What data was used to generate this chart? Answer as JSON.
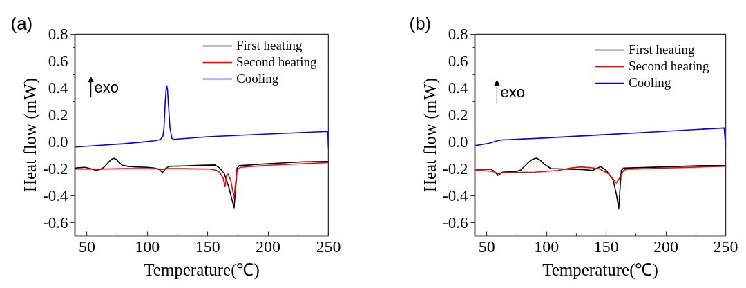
{
  "chart_data": [
    {
      "type": "line",
      "title": "(a)",
      "xlabel": "Temperature(℃)",
      "ylabel": "Heat flow (mW)",
      "annotations": [
        "exo"
      ],
      "legend": "top right",
      "xlim": [
        40,
        250
      ],
      "ylim": [
        -0.7,
        0.8
      ],
      "xticks": [
        50,
        {
          "value": 75,
          "label": null
        },
        100,
        {
          "value": 125,
          "label": null
        },
        150,
        {
          "value": 175,
          "label": null
        },
        200,
        {
          "value": 225,
          "label": null
        },
        250
      ],
      "yticks": [
        -0.6,
        {
          "value": -0.5,
          "label": null
        },
        -0.4,
        {
          "value": -0.3,
          "label": null
        },
        -0.2,
        {
          "value": -0.1,
          "label": null
        },
        {
          "value": 0,
          "label": "0.0"
        },
        {
          "value": 0.1,
          "label": null
        },
        0.2,
        {
          "value": 0.3,
          "label": null
        },
        0.4,
        {
          "value": 0.5,
          "label": null
        },
        0.6,
        {
          "value": 0.7,
          "label": null
        },
        0.8
      ],
      "series": [
        {
          "name": "First heating",
          "color": "#000000",
          "x": [
            40,
            45,
            48.6,
            53,
            57.3,
            61,
            64,
            68,
            70.5,
            72.4,
            74.5,
            76,
            79.3,
            84,
            90,
            100,
            106,
            110,
            112.5,
            114.8,
            117.7,
            130,
            144.5,
            156,
            159.9,
            163.7,
            167.5,
            171.8,
            172.9,
            174.3,
            176.2,
            200,
            230,
            250
          ],
          "values": [
            -0.195,
            -0.192,
            -0.19,
            -0.2,
            -0.212,
            -0.205,
            -0.19,
            -0.15,
            -0.13,
            -0.123,
            -0.132,
            -0.15,
            -0.175,
            -0.183,
            -0.187,
            -0.19,
            -0.195,
            -0.207,
            -0.229,
            -0.203,
            -0.183,
            -0.18,
            -0.175,
            -0.173,
            -0.195,
            -0.237,
            -0.339,
            -0.491,
            -0.373,
            -0.195,
            -0.178,
            -0.163,
            -0.149,
            -0.147
          ]
        },
        {
          "name": "Second heating",
          "color": "#ff0000",
          "x": [
            40,
            60,
            80,
            100,
            108,
            112,
            115,
            130,
            152,
            157,
            160,
            162.8,
            164.3,
            165.6,
            166.8,
            169.1,
            171.8,
            172.9,
            174.3,
            177.1,
            200,
            230,
            250
          ],
          "values": [
            -0.203,
            -0.203,
            -0.2,
            -0.2,
            -0.2,
            -0.207,
            -0.2,
            -0.2,
            -0.203,
            -0.212,
            -0.229,
            -0.271,
            -0.335,
            -0.254,
            -0.24,
            -0.288,
            -0.418,
            -0.322,
            -0.212,
            -0.19,
            -0.175,
            -0.163,
            -0.155
          ]
        },
        {
          "name": "Cooling",
          "color": "#0000ff",
          "x": [
            40,
            60,
            80,
            100,
            106,
            110.8,
            112.9,
            113.8,
            114.8,
            115.5,
            116.1,
            116.7,
            117.3,
            118.7,
            120.3,
            121.7,
            150,
            200,
            249.5,
            250
          ],
          "values": [
            -0.039,
            -0.027,
            -0.015,
            0.002,
            0.008,
            0.017,
            0.042,
            0.105,
            0.298,
            0.385,
            0.416,
            0.385,
            0.298,
            0.105,
            0.026,
            0.018,
            0.037,
            0.058,
            0.077,
            -0.05
          ]
        }
      ]
    },
    {
      "type": "line",
      "title": "(b)",
      "xlabel": "Temperature(℃)",
      "ylabel": "Heat flow (mW)",
      "annotations": [
        "exo"
      ],
      "legend": "top right",
      "xlim": [
        40,
        250
      ],
      "ylim": [
        -0.7,
        0.8
      ],
      "xticks": [
        50,
        {
          "value": 75,
          "label": null
        },
        100,
        {
          "value": 125,
          "label": null
        },
        150,
        {
          "value": 175,
          "label": null
        },
        200,
        {
          "value": 225,
          "label": null
        },
        250
      ],
      "yticks": [
        -0.6,
        {
          "value": -0.5,
          "label": null
        },
        -0.4,
        {
          "value": -0.3,
          "label": null
        },
        -0.2,
        {
          "value": -0.1,
          "label": null
        },
        {
          "value": 0,
          "label": "0.0"
        },
        {
          "value": 0.1,
          "label": null
        },
        0.2,
        {
          "value": 0.3,
          "label": null
        },
        0.4,
        {
          "value": 0.5,
          "label": null
        },
        0.6,
        {
          "value": 0.7,
          "label": null
        },
        0.8
      ],
      "series": [
        {
          "name": "First heating",
          "color": "#000000",
          "x": [
            40,
            53.5,
            56.4,
            59.3,
            63.2,
            70,
            74.7,
            78.6,
            84.4,
            88,
            91.3,
            94.5,
            97.9,
            103.7,
            119.1,
            130,
            138.4,
            145.3,
            150,
            155.8,
            158.7,
            160.5,
            162.6,
            164.5,
            200,
            230,
            250
          ],
          "values": [
            -0.204,
            -0.204,
            -0.221,
            -0.25,
            -0.226,
            -0.222,
            -0.221,
            -0.209,
            -0.158,
            -0.132,
            -0.122,
            -0.135,
            -0.165,
            -0.199,
            -0.204,
            -0.206,
            -0.213,
            -0.185,
            -0.213,
            -0.281,
            -0.4,
            -0.494,
            -0.213,
            -0.196,
            -0.187,
            -0.178,
            -0.178
          ]
        },
        {
          "name": "Second heating",
          "color": "#ff0000",
          "x": [
            40,
            55.4,
            59.3,
            63.2,
            90.2,
            109.5,
            120,
            128.8,
            137,
            144.2,
            151.9,
            158.5,
            161.6,
            164.5,
            167.4,
            200,
            250
          ],
          "values": [
            -0.209,
            -0.221,
            -0.238,
            -0.23,
            -0.226,
            -0.213,
            -0.196,
            -0.187,
            -0.193,
            -0.201,
            -0.238,
            -0.306,
            -0.264,
            -0.213,
            -0.204,
            -0.195,
            -0.182
          ]
        },
        {
          "name": "Cooling",
          "color": "#0000ff",
          "x": [
            40,
            51.6,
            59.3,
            63.2,
            100,
            150,
            200,
            248.8,
            250
          ],
          "values": [
            -0.029,
            -0.012,
            0.009,
            0.014,
            0.029,
            0.053,
            0.078,
            0.102,
            -0.043
          ]
        }
      ]
    }
  ]
}
